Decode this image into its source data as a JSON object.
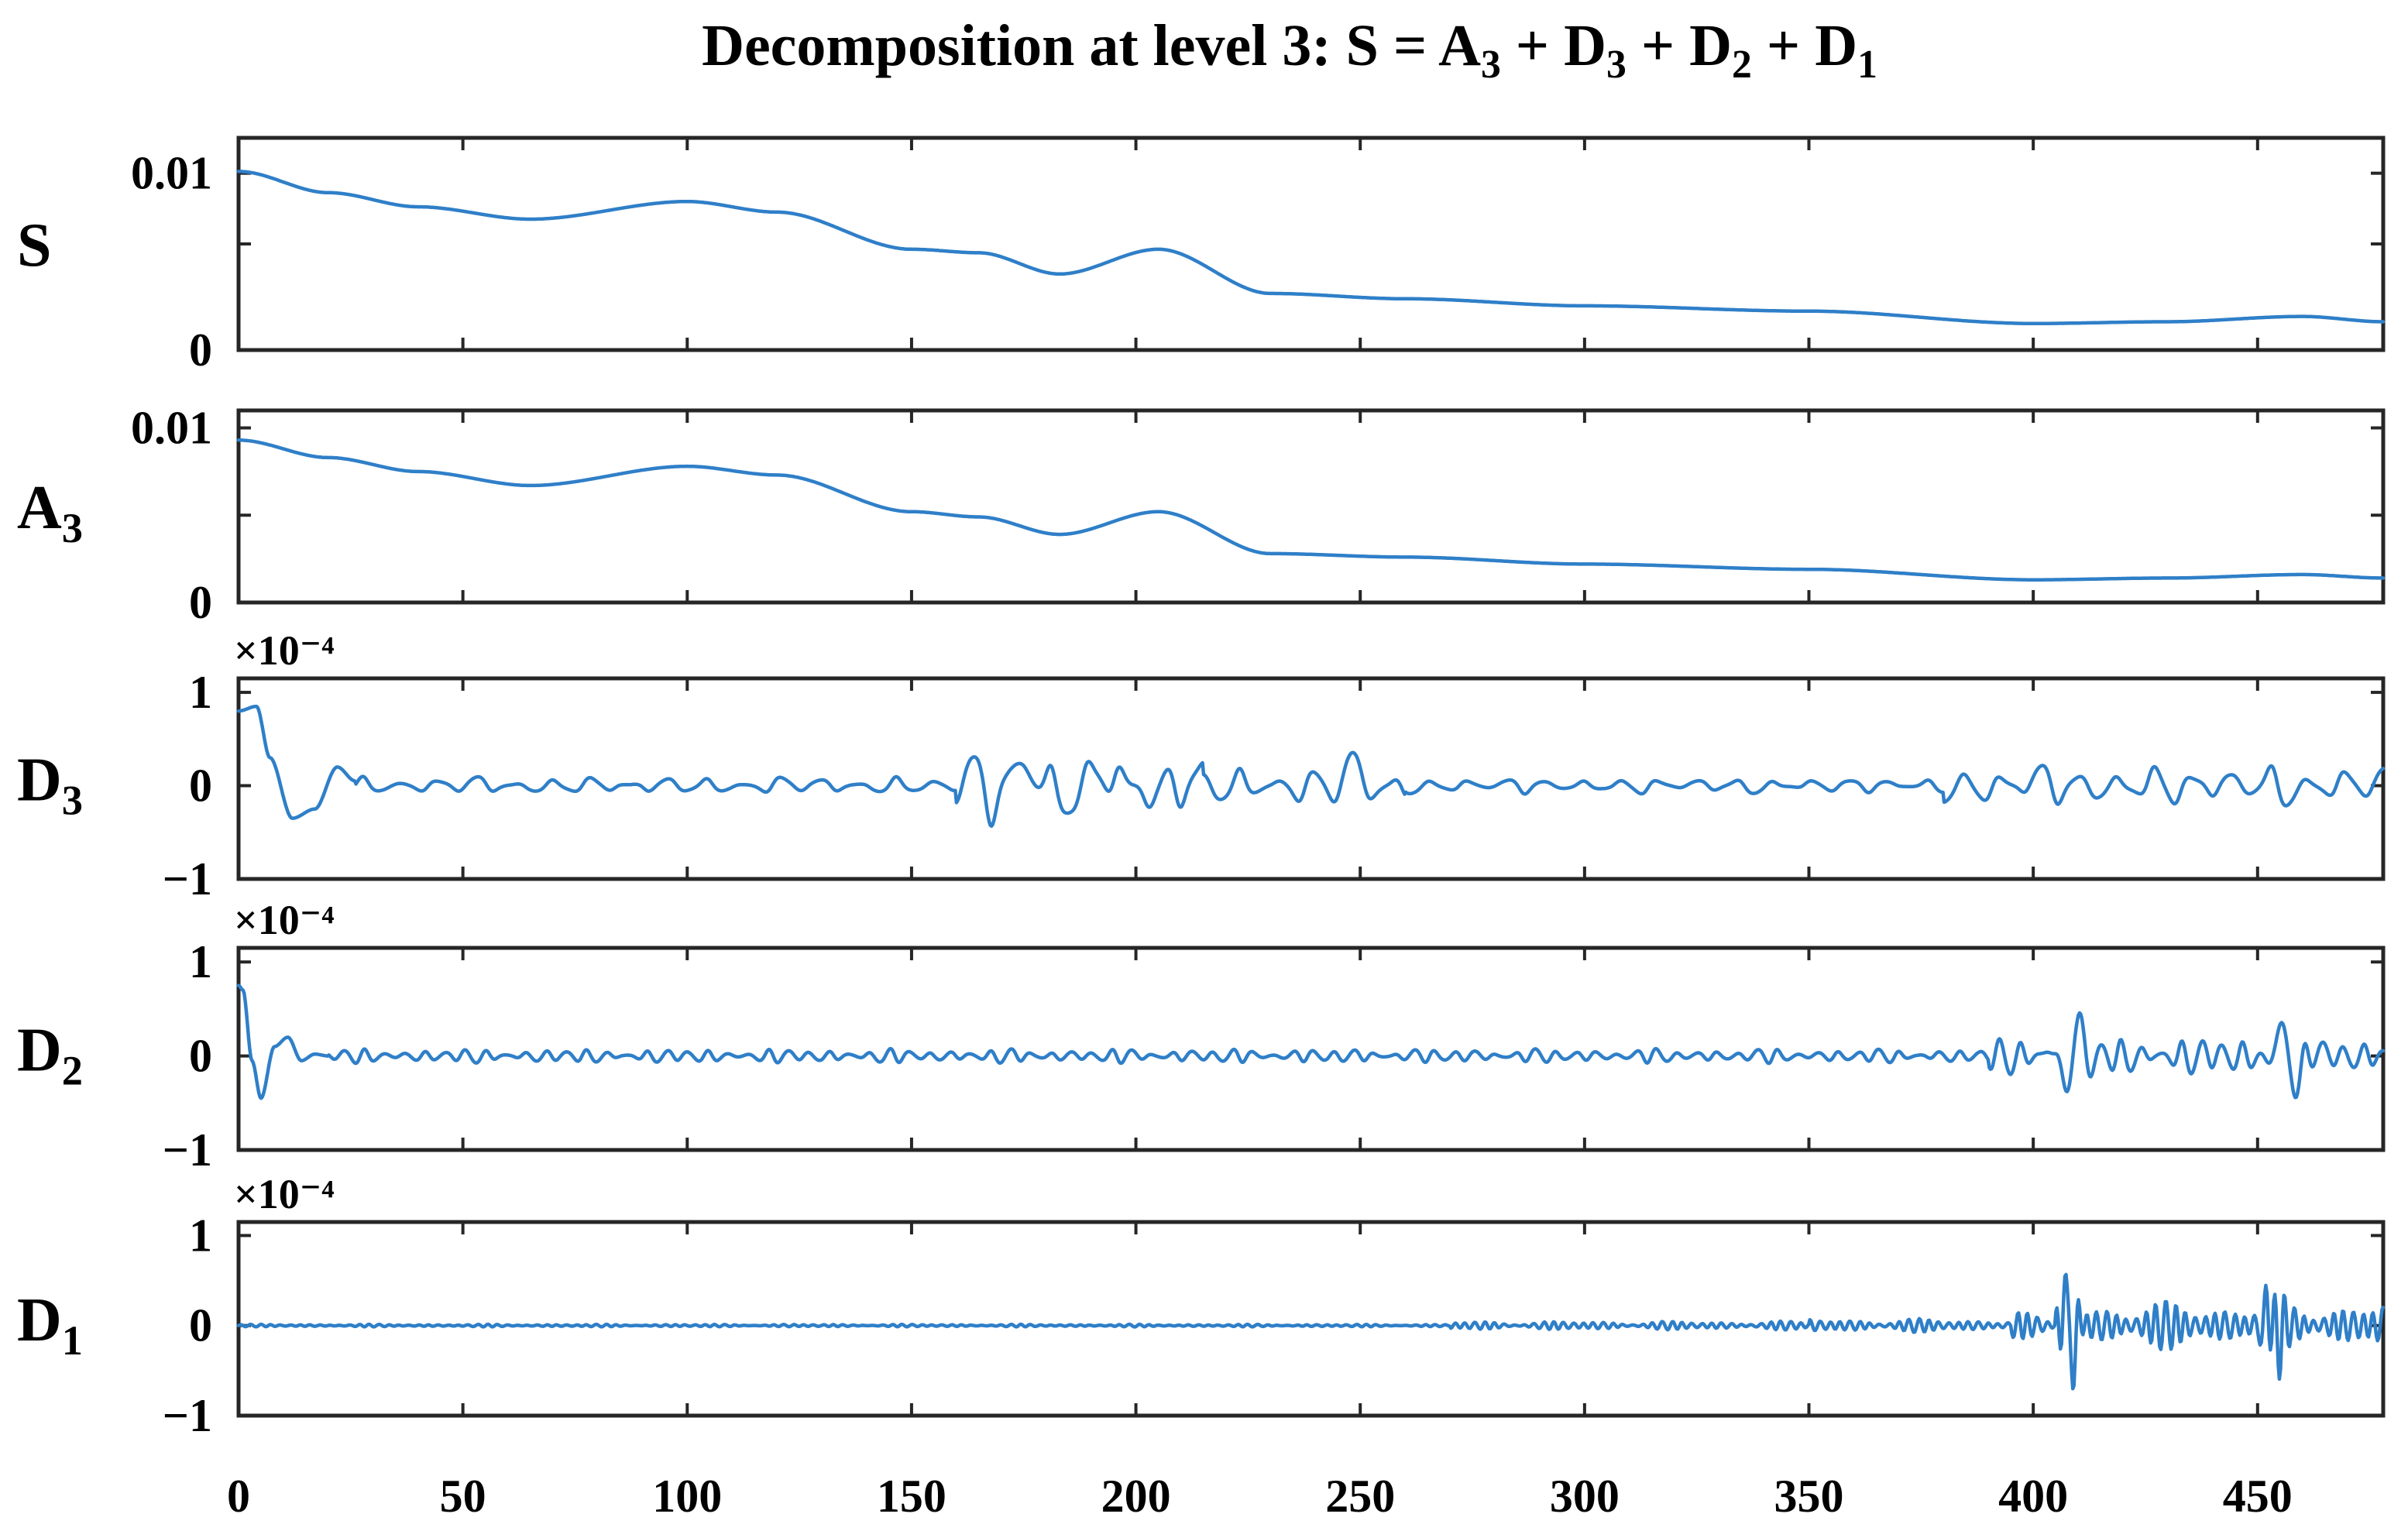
{
  "chart_data": {
    "type": "line",
    "title": {
      "prefix": "Decomposition at level 3:  S = A",
      "s1": "3",
      "mid1": " + D",
      "s2": "3",
      "mid2": " +  D",
      "s3": "2",
      "mid3": " + D",
      "s4": "1"
    },
    "line_color": "#2f7fc8",
    "xlim": [
      0,
      478
    ],
    "xticks": [
      0,
      50,
      100,
      150,
      200,
      250,
      300,
      350,
      400,
      450
    ],
    "xtick_labels": [
      "0",
      "50",
      "100",
      "150",
      "200",
      "250",
      "300",
      "350",
      "400",
      "450"
    ],
    "panels": [
      {
        "id": "S",
        "ylabel_main": "S",
        "ylabel_sub": "",
        "ylim": [
          0,
          0.012
        ],
        "yticks": [
          0,
          0.006,
          0.01
        ],
        "ytick_labels": [
          "0",
          "",
          "0.01"
        ],
        "exponent_label": "",
        "series_name": "S",
        "x": [
          0,
          20,
          40,
          65,
          100,
          120,
          150,
          165,
          183,
          205,
          230,
          260,
          300,
          350,
          400,
          430,
          460,
          478
        ],
        "y": [
          0.0101,
          0.0089,
          0.0081,
          0.0074,
          0.0084,
          0.0078,
          0.0057,
          0.0055,
          0.0043,
          0.0057,
          0.0032,
          0.0029,
          0.0025,
          0.0022,
          0.0015,
          0.0016,
          0.0019,
          0.0016
        ],
        "wiggle": [],
        "bursts": []
      },
      {
        "id": "A3",
        "ylabel_main": "A",
        "ylabel_sub": "3",
        "ylim": [
          0,
          0.011
        ],
        "yticks": [
          0,
          0.005,
          0.01
        ],
        "ytick_labels": [
          "0",
          "",
          "0.01"
        ],
        "exponent_label": "",
        "series_name": "A3",
        "x": [
          0,
          20,
          40,
          65,
          100,
          120,
          150,
          165,
          183,
          205,
          230,
          260,
          300,
          350,
          400,
          430,
          460,
          478
        ],
        "y": [
          0.0093,
          0.0083,
          0.0075,
          0.0067,
          0.0078,
          0.0073,
          0.0052,
          0.0049,
          0.0039,
          0.0052,
          0.0028,
          0.0026,
          0.0022,
          0.0019,
          0.0013,
          0.0014,
          0.0016,
          0.0014
        ],
        "wiggle": [],
        "bursts": []
      },
      {
        "id": "D3",
        "ylabel_main": "D",
        "ylabel_sub": "3",
        "ylim": [
          -1,
          1.15
        ],
        "yticks": [
          -1,
          0,
          1
        ],
        "ytick_labels": [
          "−1",
          "0",
          "1"
        ],
        "exponent_label": "×10⁻⁴",
        "series_name": "D3",
        "x": [
          0,
          4,
          7,
          12,
          17,
          22,
          26
        ],
        "y": [
          0.8,
          0.85,
          0.3,
          -0.35,
          -0.25,
          0.2,
          0.05
        ],
        "wiggle": [
          {
            "from": 26,
            "to": 160,
            "period": 8.5,
            "amp": 0.1
          },
          {
            "from": 160,
            "to": 215,
            "period": 8.5,
            "amp": 0.42
          },
          {
            "from": 215,
            "to": 260,
            "period": 8.5,
            "amp": 0.22
          },
          {
            "from": 260,
            "to": 380,
            "period": 8.5,
            "amp": 0.09
          },
          {
            "from": 380,
            "to": 478,
            "period": 8.5,
            "amp": 0.24
          }
        ],
        "bursts": [
          {
            "at": 175,
            "amp": 0.25,
            "width": 6
          },
          {
            "at": 193,
            "amp": 0.3,
            "width": 6
          },
          {
            "at": 205,
            "amp": -0.25,
            "width": 6
          },
          {
            "at": 248,
            "amp": 0.2,
            "width": 5
          }
        ]
      },
      {
        "id": "D2",
        "ylabel_main": "D",
        "ylabel_sub": "2",
        "ylim": [
          -1,
          1.15
        ],
        "yticks": [
          -1,
          0,
          1
        ],
        "ytick_labels": [
          "−1",
          "0",
          "1"
        ],
        "exponent_label": "×10⁻⁴",
        "series_name": "D2",
        "x": [
          0,
          1,
          3,
          5,
          8,
          11,
          14,
          17,
          20
        ],
        "y": [
          0.75,
          0.7,
          -0.05,
          -0.45,
          0.1,
          0.2,
          -0.05,
          0.02,
          0
        ],
        "wiggle": [
          {
            "from": 20,
            "to": 390,
            "period": 4.5,
            "amp": 0.08
          },
          {
            "from": 390,
            "to": 478,
            "period": 4.5,
            "amp": 0.22
          }
        ],
        "bursts": [
          {
            "at": 407,
            "amp": -0.25,
            "width": 3
          },
          {
            "at": 410,
            "amp": 0.28,
            "width": 3
          },
          {
            "at": 455,
            "amp": 0.25,
            "width": 3
          },
          {
            "at": 459,
            "amp": -0.28,
            "width": 3
          }
        ]
      },
      {
        "id": "D1",
        "ylabel_main": "D",
        "ylabel_sub": "1",
        "ylim": [
          -1,
          1.15
        ],
        "yticks": [
          -1,
          0,
          1
        ],
        "ytick_labels": [
          "−1",
          "0",
          "1"
        ],
        "exponent_label": "×10⁻⁴",
        "series_name": "D1",
        "x": [],
        "y": [],
        "wiggle": [
          {
            "from": 0,
            "to": 270,
            "period": 2.2,
            "amp": 0.015
          },
          {
            "from": 270,
            "to": 350,
            "period": 2.2,
            "amp": 0.05
          },
          {
            "from": 350,
            "to": 395,
            "period": 2.2,
            "amp": 0.08
          },
          {
            "from": 395,
            "to": 405,
            "period": 2.2,
            "amp": 0.15
          },
          {
            "from": 405,
            "to": 478,
            "period": 2.2,
            "amp": 0.28
          }
        ],
        "bursts": [
          {
            "at": 407,
            "amp": 0.45,
            "width": 1.2
          },
          {
            "at": 409,
            "amp": -0.6,
            "width": 1.2
          },
          {
            "at": 452,
            "amp": 0.3,
            "width": 1.2
          },
          {
            "at": 455,
            "amp": -0.35,
            "width": 1.2
          }
        ]
      }
    ]
  }
}
